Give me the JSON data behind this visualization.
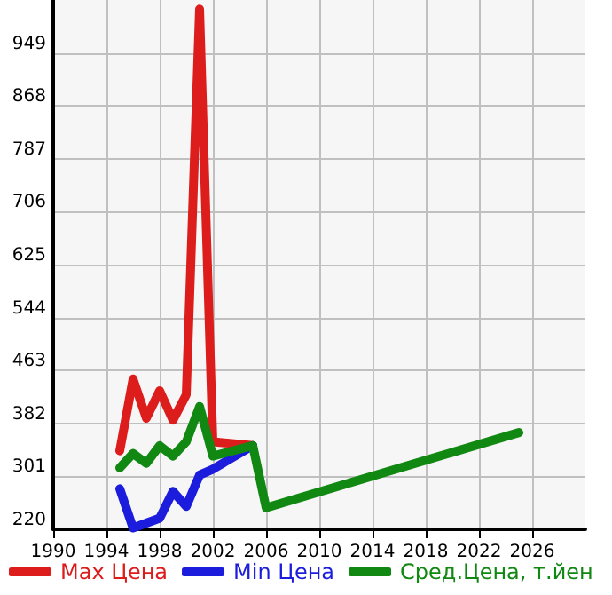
{
  "chart_data": {
    "type": "line",
    "xlim": [
      1990,
      2030
    ],
    "xticks": [
      1990,
      1994,
      1998,
      2002,
      2006,
      2010,
      2014,
      2018,
      2022,
      2026
    ],
    "ylim": [
      220,
      1030
    ],
    "yticks": [
      220,
      301,
      382,
      463,
      544,
      625,
      706,
      787,
      868,
      949
    ],
    "grid": true,
    "legend": "bottom",
    "marker": "none",
    "line_style": "solid",
    "series": [
      {
        "name": "Max Цена",
        "color": "#dd1c1c",
        "x": [
          1995,
          1996,
          1997,
          1998,
          1999,
          2000,
          2001,
          2002,
          2005
        ],
        "values": [
          340,
          450,
          390,
          432,
          387,
          426,
          1016,
          354,
          348
        ]
      },
      {
        "name": "Min Цена",
        "color": "#1c1cdd",
        "x": [
          1995,
          1996,
          1998,
          1999,
          2000,
          2001,
          2002,
          2005
        ],
        "values": [
          282,
          222,
          237,
          278,
          255,
          303,
          312,
          348
        ]
      },
      {
        "name": "Сред.Цена, т.йен",
        "color": "#118811",
        "x": [
          1995,
          1996,
          1997,
          1998,
          1999,
          2000,
          2001,
          2002,
          2005,
          2006,
          2025
        ],
        "values": [
          314,
          336,
          321,
          348,
          332,
          354,
          408,
          332,
          348,
          253,
          368
        ]
      }
    ]
  }
}
